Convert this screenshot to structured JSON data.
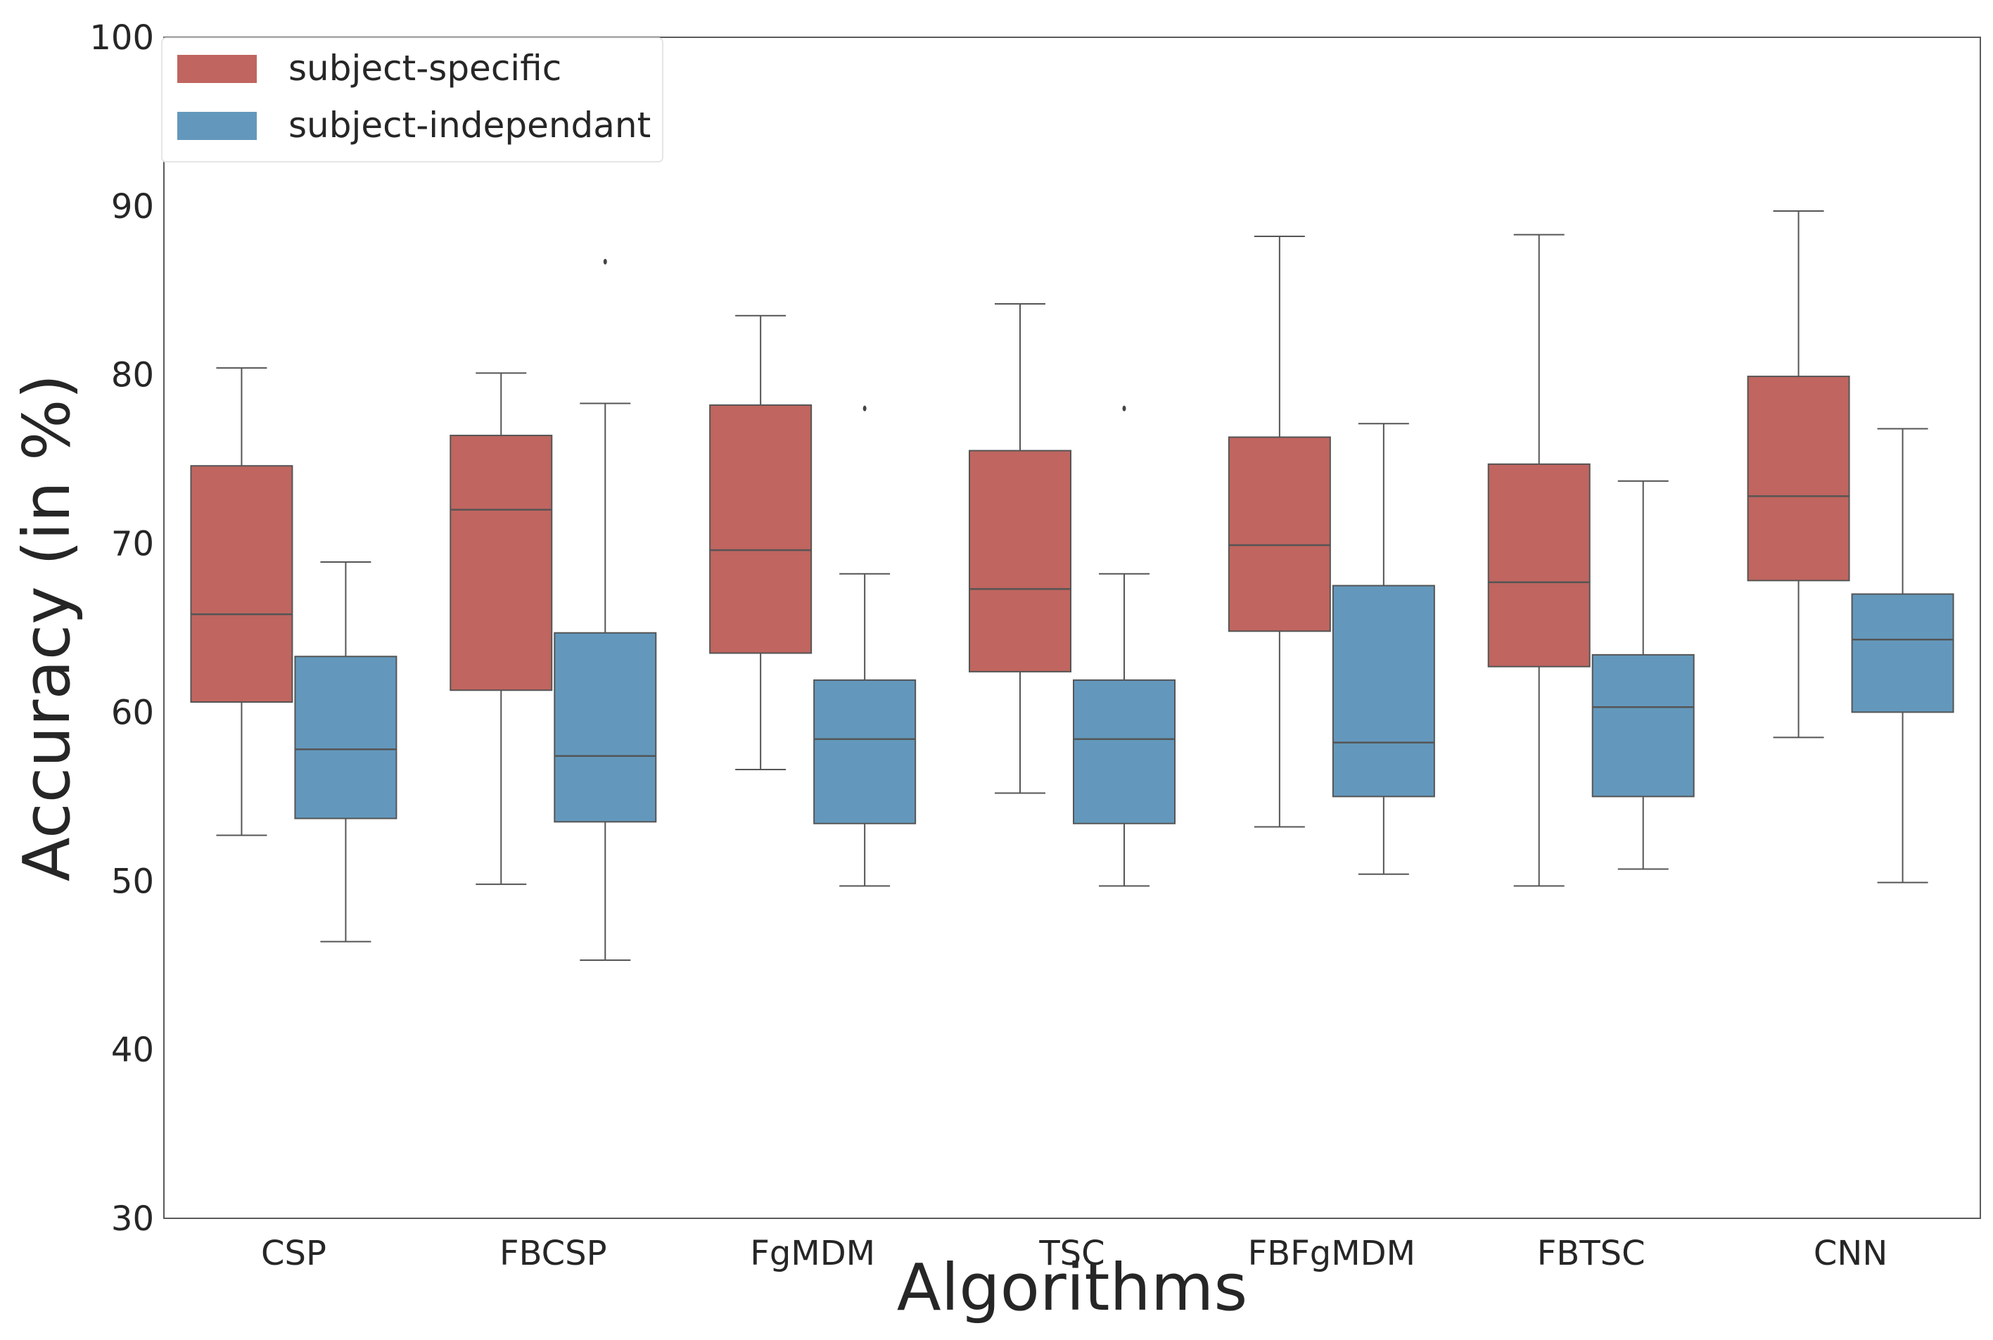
{
  "chart_data": {
    "type": "box",
    "title": "",
    "xlabel": "Algorithms",
    "ylabel": "Accuracy (in %)",
    "ylim": [
      30,
      100
    ],
    "yticks": [
      30,
      40,
      50,
      60,
      70,
      80,
      90,
      100
    ],
    "grid": false,
    "legend_position": "top-left",
    "categories": [
      "CSP",
      "FBCSP",
      "FgMDM",
      "TSC",
      "FBFgMDM",
      "FBTSC",
      "CNN"
    ],
    "series": [
      {
        "name": "subject-specific",
        "color": "#c0655f",
        "boxes": [
          {
            "whisker_low": 52.7,
            "q1": 60.6,
            "median": 65.8,
            "q3": 74.6,
            "whisker_high": 80.4,
            "outliers": []
          },
          {
            "whisker_low": 49.8,
            "q1": 61.3,
            "median": 72.0,
            "q3": 76.4,
            "whisker_high": 80.1,
            "outliers": []
          },
          {
            "whisker_low": 56.6,
            "q1": 63.5,
            "median": 69.6,
            "q3": 78.2,
            "whisker_high": 83.5,
            "outliers": []
          },
          {
            "whisker_low": 55.2,
            "q1": 62.4,
            "median": 67.3,
            "q3": 75.5,
            "whisker_high": 84.2,
            "outliers": []
          },
          {
            "whisker_low": 53.2,
            "q1": 64.8,
            "median": 69.9,
            "q3": 76.3,
            "whisker_high": 88.2,
            "outliers": []
          },
          {
            "whisker_low": 49.7,
            "q1": 62.7,
            "median": 67.7,
            "q3": 74.7,
            "whisker_high": 88.3,
            "outliers": []
          },
          {
            "whisker_low": 58.5,
            "q1": 67.8,
            "median": 72.8,
            "q3": 79.9,
            "whisker_high": 89.7,
            "outliers": []
          }
        ]
      },
      {
        "name": "subject-independant",
        "color": "#6398bc",
        "boxes": [
          {
            "whisker_low": 46.4,
            "q1": 53.7,
            "median": 57.8,
            "q3": 63.3,
            "whisker_high": 68.9,
            "outliers": []
          },
          {
            "whisker_low": 45.3,
            "q1": 53.5,
            "median": 57.4,
            "q3": 64.7,
            "whisker_high": 78.3,
            "outliers": [
              86.7
            ]
          },
          {
            "whisker_low": 49.7,
            "q1": 53.4,
            "median": 58.4,
            "q3": 61.9,
            "whisker_high": 68.2,
            "outliers": [
              78.0
            ]
          },
          {
            "whisker_low": 49.7,
            "q1": 53.4,
            "median": 58.4,
            "q3": 61.9,
            "whisker_high": 68.2,
            "outliers": [
              78.0
            ]
          },
          {
            "whisker_low": 50.4,
            "q1": 55.0,
            "median": 58.2,
            "q3": 67.5,
            "whisker_high": 77.1,
            "outliers": []
          },
          {
            "whisker_low": 50.7,
            "q1": 55.0,
            "median": 60.3,
            "q3": 63.4,
            "whisker_high": 73.7,
            "outliers": []
          },
          {
            "whisker_low": 49.9,
            "q1": 60.0,
            "median": 64.3,
            "q3": 67.0,
            "whisker_high": 76.8,
            "outliers": []
          }
        ]
      }
    ]
  }
}
